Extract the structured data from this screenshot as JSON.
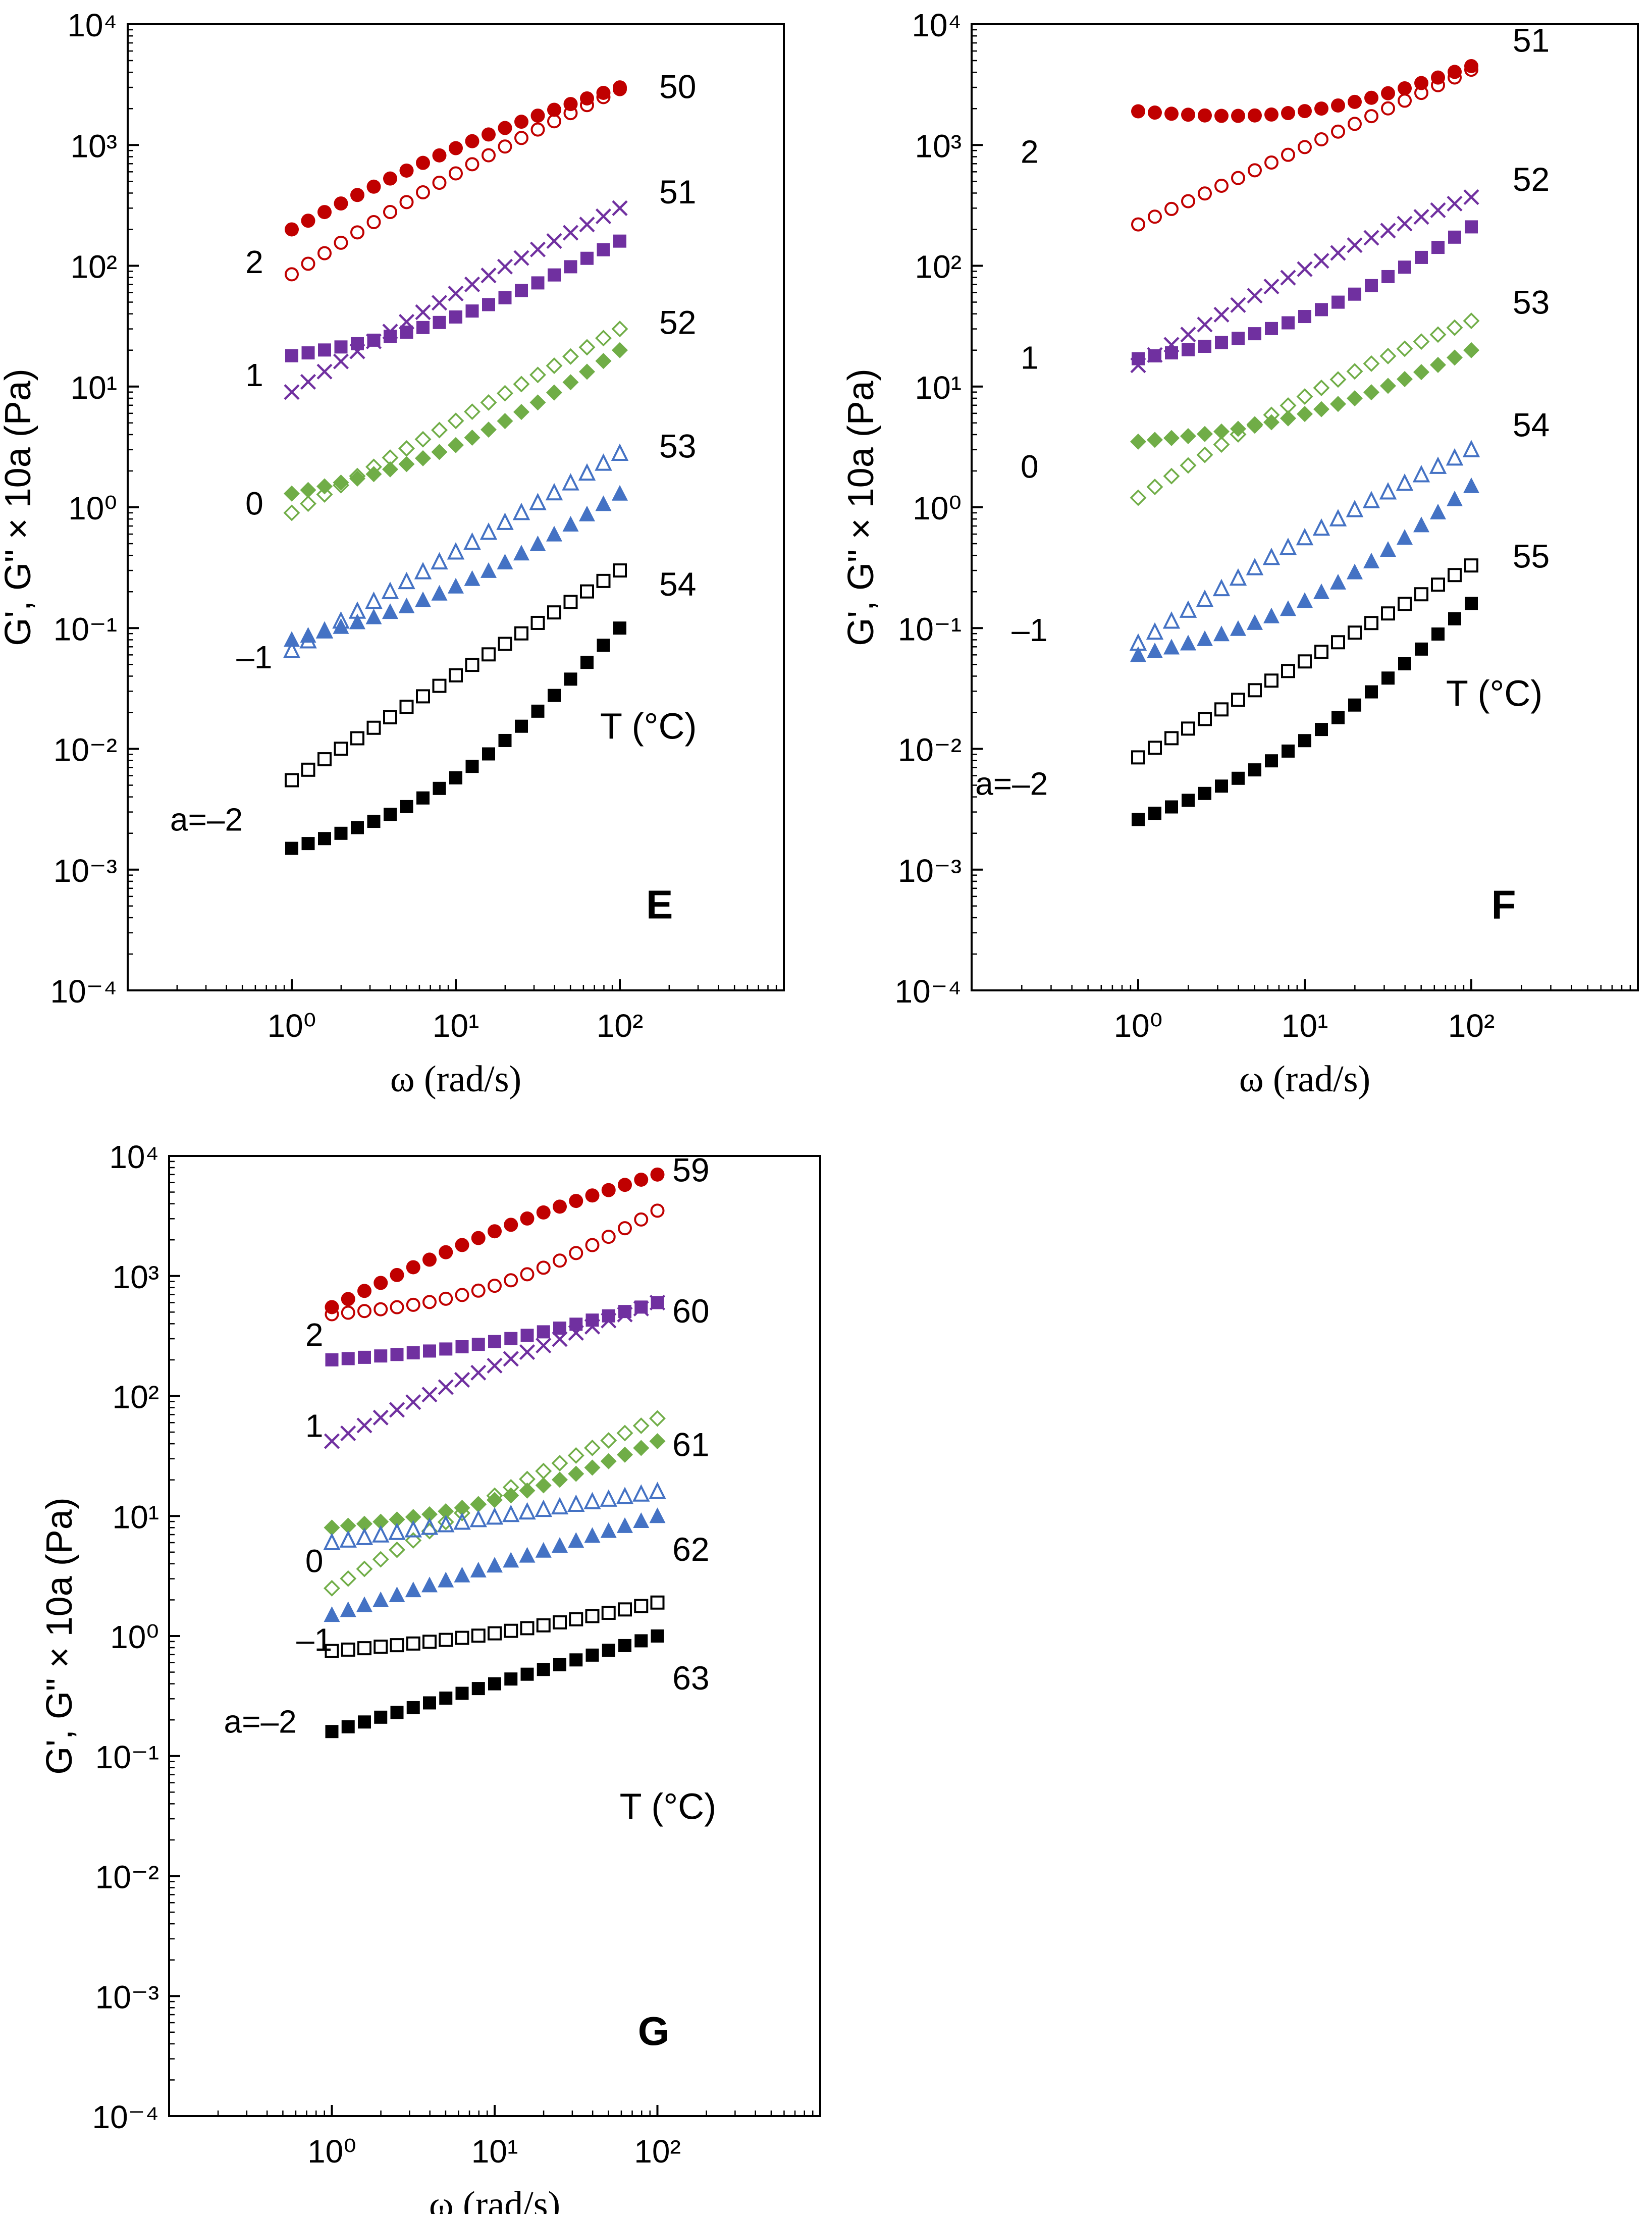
{
  "figure_title": "",
  "chart_data": [
    {
      "type": "scatter",
      "panel": "E",
      "xlabel": "ω (rad/s)",
      "ylabel": "G', G\" × 10a (Pa)",
      "xscale": "log",
      "yscale": "log",
      "xlim": [
        0.1,
        1000
      ],
      "ylim": [
        0.0001,
        10000
      ],
      "x_ticks": [
        "10⁰",
        "10¹",
        "10²"
      ],
      "y_ticks": [
        "10⁻⁴",
        "10⁻³",
        "10⁻²",
        "10⁻¹",
        "10⁰",
        "10¹",
        "10²",
        "10³",
        "10⁴"
      ],
      "temperature_heading": "T (°C)",
      "shift_labels": [
        "2",
        "1",
        "0",
        "–1",
        "a=–2"
      ],
      "temperatures": [
        "50",
        "51",
        "52",
        "53",
        "54"
      ],
      "series": [
        {
          "name": "G' 50 °C",
          "a": 2,
          "marker": "filled-circle",
          "color": "#c00000",
          "start": 200,
          "end": 3000,
          "shape": 0.08
        },
        {
          "name": "G\" 50 °C",
          "a": 2,
          "marker": "open-circle",
          "color": "#c00000",
          "start": 85,
          "end": 2900,
          "shape": 0.05
        },
        {
          "name": "G\" 51 °C",
          "a": 1,
          "marker": "cross",
          "color": "#7030a0",
          "start": 9,
          "end": 300,
          "shape": 0.04
        },
        {
          "name": "G' 51 °C",
          "a": 1,
          "marker": "filled-square",
          "color": "#7030a0",
          "start": 18,
          "end": 160,
          "shape": -0.18
        },
        {
          "name": "G\" 52 °C",
          "a": 0,
          "marker": "open-diamond",
          "color": "#70ad47",
          "start": 0.9,
          "end": 30,
          "shape": 0.0
        },
        {
          "name": "G' 52 °C",
          "a": 0,
          "marker": "filled-diamond",
          "color": "#70ad47",
          "start": 1.3,
          "end": 20,
          "shape": -0.18
        },
        {
          "name": "G\" 53 °C",
          "a": -1,
          "marker": "open-triangle",
          "color": "#4472c4",
          "start": 0.065,
          "end": 2.8,
          "shape": 0.0
        },
        {
          "name": "G' 53 °C",
          "a": -1,
          "marker": "filled-triangle",
          "color": "#4472c4",
          "start": 0.08,
          "end": 1.3,
          "shape": -0.15
        },
        {
          "name": "G\" 54 °C",
          "a": -2,
          "marker": "open-square",
          "color": "#000000",
          "start": 0.0055,
          "end": 0.3,
          "shape": 0.0
        },
        {
          "name": "G' 54 °C",
          "a": -2,
          "marker": "filled-square",
          "color": "#000000",
          "start": 0.0015,
          "end": 0.1,
          "shape": -0.2
        }
      ]
    },
    {
      "type": "scatter",
      "panel": "F",
      "xlabel": "ω (rad/s)",
      "ylabel": "G', G\" × 10a (Pa)",
      "xscale": "log",
      "yscale": "log",
      "xlim": [
        0.1,
        1000
      ],
      "ylim": [
        0.0001,
        10000
      ],
      "x_ticks": [
        "10⁰",
        "10¹",
        "10²"
      ],
      "y_ticks": [
        "10⁻⁴",
        "10⁻³",
        "10⁻²",
        "10⁻¹",
        "10⁰",
        "10¹",
        "10²",
        "10³",
        "10⁴"
      ],
      "temperature_heading": "T (°C)",
      "shift_labels": [
        "2",
        "1",
        "0",
        "–1",
        "a=–2"
      ],
      "temperatures": [
        "51",
        "52",
        "53",
        "54",
        "55"
      ],
      "series": [
        {
          "name": "G' 51 °C",
          "a": 2,
          "marker": "filled-circle",
          "color": "#c00000",
          "start": 1900,
          "end": 4500,
          "shape": -0.55
        },
        {
          "name": "G\" 51 °C",
          "a": 2,
          "marker": "open-circle",
          "color": "#c00000",
          "start": 220,
          "end": 4200,
          "shape": 0.0
        },
        {
          "name": "G\" 52 °C",
          "a": 1,
          "marker": "cross",
          "color": "#7030a0",
          "start": 15,
          "end": 370,
          "shape": 0.08
        },
        {
          "name": "G' 52 °C",
          "a": 1,
          "marker": "filled-square",
          "color": "#7030a0",
          "start": 17,
          "end": 210,
          "shape": -0.2
        },
        {
          "name": "G\" 53 °C",
          "a": 0,
          "marker": "open-diamond",
          "color": "#70ad47",
          "start": 1.2,
          "end": 35,
          "shape": 0.08
        },
        {
          "name": "G' 53 °C",
          "a": 0,
          "marker": "filled-diamond",
          "color": "#70ad47",
          "start": 3.5,
          "end": 20,
          "shape": -0.22
        },
        {
          "name": "G\" 54 °C",
          "a": -1,
          "marker": "open-triangle",
          "color": "#4472c4",
          "start": 0.075,
          "end": 3.0,
          "shape": 0.05
        },
        {
          "name": "G' 54 °C",
          "a": -1,
          "marker": "filled-triangle",
          "color": "#4472c4",
          "start": 0.06,
          "end": 1.5,
          "shape": -0.2
        },
        {
          "name": "G\" 55 °C",
          "a": -2,
          "marker": "open-square",
          "color": "#000000",
          "start": 0.0085,
          "end": 0.33,
          "shape": 0.0
        },
        {
          "name": "G' 55 °C",
          "a": -2,
          "marker": "filled-square",
          "color": "#000000",
          "start": 0.0026,
          "end": 0.16,
          "shape": -0.15
        }
      ]
    },
    {
      "type": "scatter",
      "panel": "G",
      "xlabel": "ω (rad/s)",
      "ylabel": "G', G\" × 10a (Pa)",
      "xscale": "log",
      "yscale": "log",
      "xlim": [
        0.1,
        1000
      ],
      "ylim": [
        0.0001,
        10000
      ],
      "x_ticks": [
        "10⁰",
        "10¹",
        "10²"
      ],
      "y_ticks": [
        "10⁻⁴",
        "10⁻³",
        "10⁻²",
        "10⁻¹",
        "10⁰",
        "10¹",
        "10²",
        "10³",
        "10⁴"
      ],
      "temperature_heading": "T (°C)",
      "shift_labels": [
        "2",
        "1",
        "0",
        "–1",
        "a=–2"
      ],
      "temperatures": [
        "59",
        "60",
        "61",
        "62",
        "63"
      ],
      "series": [
        {
          "name": "G' 59 °C",
          "a": 2,
          "marker": "filled-circle",
          "color": "#c00000",
          "start": 550,
          "end": 7000,
          "shape": 0.08
        },
        {
          "name": "G\" 59 °C",
          "a": 2,
          "marker": "open-circle",
          "color": "#c00000",
          "start": 480,
          "end": 3500,
          "shape": -0.25
        },
        {
          "name": "G' 60 °C",
          "a": 1,
          "marker": "filled-square",
          "color": "#7030a0",
          "start": 200,
          "end": 600,
          "shape": -0.2
        },
        {
          "name": "G\" 60 °C",
          "a": 1,
          "marker": "cross",
          "color": "#7030a0",
          "start": 42,
          "end": 600,
          "shape": 0.05
        },
        {
          "name": "G\" 61 °C",
          "a": 0,
          "marker": "open-diamond",
          "color": "#70ad47",
          "start": 2.5,
          "end": 65,
          "shape": 0.05
        },
        {
          "name": "G' 61 °C",
          "a": 0,
          "marker": "filled-diamond",
          "color": "#70ad47",
          "start": 8,
          "end": 42,
          "shape": -0.2
        },
        {
          "name": "G\" 62 °C",
          "a": -1,
          "marker": "open-triangle",
          "color": "#4472c4",
          "start": 6,
          "end": 16,
          "shape": 0.0
        },
        {
          "name": "G' 62 °C",
          "a": -1,
          "marker": "filled-triangle",
          "color": "#4472c4",
          "start": 1.5,
          "end": 10,
          "shape": 0.0
        },
        {
          "name": "G\" 63 °C",
          "a": -2,
          "marker": "open-square",
          "color": "#000000",
          "start": 0.75,
          "end": 1.9,
          "shape": -0.15
        },
        {
          "name": "G' 63 °C",
          "a": -2,
          "marker": "filled-square",
          "color": "#000000",
          "start": 0.16,
          "end": 1.0,
          "shape": 0.0
        }
      ]
    }
  ]
}
